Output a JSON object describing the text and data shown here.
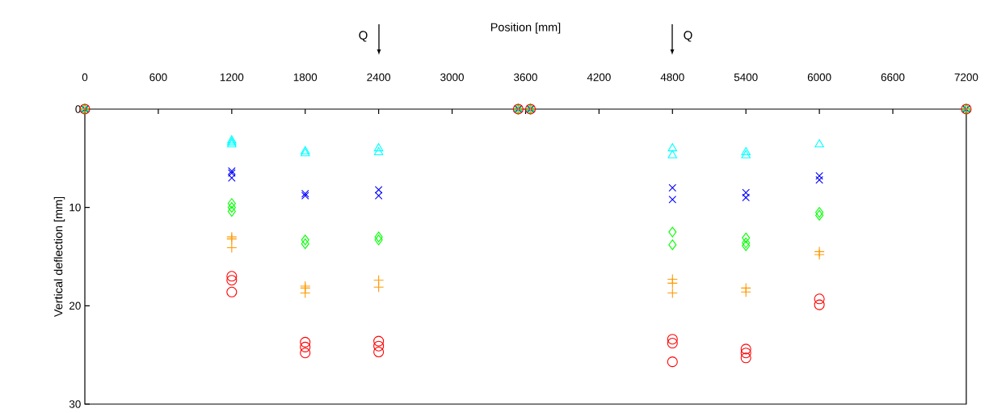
{
  "chart_data": {
    "type": "scatter",
    "xlabel": "Position [mm]",
    "ylabel": "Vertical deflection [mm]",
    "xlim": [
      0,
      7200
    ],
    "xticks": [
      0,
      600,
      1200,
      1800,
      2400,
      3000,
      3600,
      4200,
      4800,
      5400,
      6000,
      6600,
      7200
    ],
    "ylim": [
      30,
      0
    ],
    "yticks": [
      0,
      10,
      20,
      30
    ],
    "annotations": [
      "Q",
      "Q"
    ],
    "series": [
      {
        "color": "#00ffff",
        "marker": "triangle",
        "x": [
          0,
          1200,
          1200,
          1200,
          1800,
          1800,
          2400,
          2400,
          3540,
          3640,
          4800,
          4800,
          5400,
          5400,
          6000,
          7200
        ],
        "values": [
          0,
          3.2,
          3.4,
          3.6,
          4.3,
          4.5,
          4.0,
          4.4,
          0,
          0,
          4.0,
          4.7,
          4.4,
          4.7,
          3.6,
          0
        ]
      },
      {
        "color": "#0000ff",
        "marker": "cross",
        "x": [
          0,
          1200,
          1200,
          1200,
          1800,
          1800,
          2400,
          2400,
          3540,
          3640,
          4800,
          4800,
          5400,
          5400,
          6000,
          6000,
          7200
        ],
        "values": [
          0,
          6.3,
          6.5,
          7.0,
          8.6,
          8.8,
          8.2,
          8.8,
          0,
          0,
          8.0,
          9.2,
          8.5,
          9.0,
          6.8,
          7.2,
          0
        ]
      },
      {
        "color": "#00ff00",
        "marker": "diamond",
        "x": [
          0,
          1200,
          1200,
          1200,
          1800,
          1800,
          2400,
          2400,
          3540,
          3640,
          4800,
          4800,
          5400,
          5400,
          5400,
          6000,
          6000,
          7200
        ],
        "values": [
          0,
          9.6,
          10.0,
          10.4,
          13.3,
          13.7,
          13.0,
          13.3,
          0,
          0,
          12.5,
          13.8,
          13.1,
          13.6,
          13.9,
          10.5,
          10.8,
          0
        ]
      },
      {
        "color": "#ff9900",
        "marker": "plus",
        "x": [
          0,
          1200,
          1200,
          1200,
          1800,
          1800,
          1800,
          2400,
          2400,
          3540,
          3640,
          4800,
          4800,
          4800,
          5400,
          5400,
          6000,
          6000,
          7200
        ],
        "values": [
          0,
          13.0,
          13.2,
          14.1,
          18.0,
          18.2,
          18.7,
          17.4,
          18.1,
          0,
          0,
          17.3,
          17.7,
          18.7,
          18.2,
          18.6,
          14.5,
          14.8,
          0
        ]
      },
      {
        "color": "#ff0000",
        "marker": "circle",
        "x": [
          0,
          1200,
          1200,
          1200,
          1800,
          1800,
          1800,
          2400,
          2400,
          2400,
          3540,
          3640,
          4800,
          4800,
          4800,
          5400,
          5400,
          5400,
          6000,
          6000,
          7200
        ],
        "values": [
          0,
          17.0,
          17.4,
          18.6,
          23.7,
          24.2,
          24.8,
          23.6,
          24.1,
          24.7,
          0,
          0,
          23.4,
          23.8,
          25.7,
          24.4,
          24.8,
          25.3,
          19.3,
          19.9,
          0
        ]
      }
    ]
  }
}
